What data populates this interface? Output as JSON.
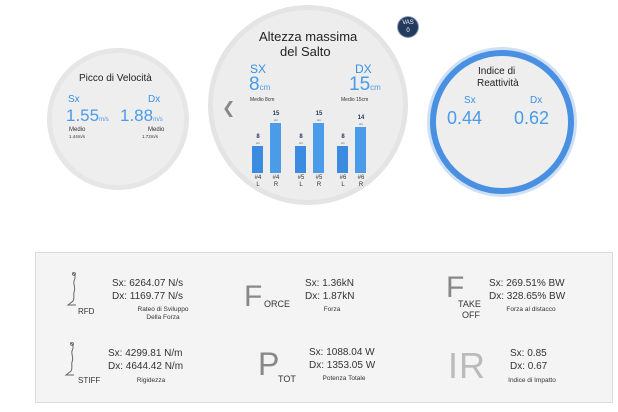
{
  "left_gauge": {
    "title": "Picco di Velocità",
    "sx_label": "Sx",
    "dx_label": "Dx",
    "sx_value": "1.55",
    "sx_unit": "m/s",
    "dx_value": "1.88",
    "dx_unit": "m/s",
    "sx_avg_label": "Medio",
    "sx_avg_value": "1.44m/s",
    "dx_avg_label": "Medio",
    "dx_avg_value": "1.72m/s"
  },
  "center_gauge": {
    "title_line1": "Altezza massima",
    "title_line2": "del Salto",
    "sx_label": "SX",
    "dx_label": "DX",
    "sx_value": "8",
    "sx_unit": "cm",
    "dx_value": "15",
    "dx_unit": "cm",
    "sx_avg": "Medio 8cm",
    "dx_avg": "Medio 15cm",
    "back_icon": "chevron-left-icon",
    "bar_unit": "cm"
  },
  "chart_data": {
    "type": "bar",
    "categories": [
      "#4 L",
      "#4 R",
      "#5 L",
      "#5 R",
      "#6 L",
      "#6 R"
    ],
    "values": [
      8,
      15,
      8,
      15,
      8,
      14
    ],
    "tick_labels": [
      [
        "#4",
        "L"
      ],
      [
        "#4",
        "R"
      ],
      [
        "#5",
        "L"
      ],
      [
        "#5",
        "R"
      ],
      [
        "#6",
        "L"
      ],
      [
        "#6",
        "R"
      ]
    ],
    "ylim": [
      0,
      16
    ]
  },
  "vas_badge": {
    "label": "VAS",
    "value": "0"
  },
  "right_gauge": {
    "title_line1": "Indice di",
    "title_line2": "Reattività",
    "sx_label": "Sx",
    "dx_label": "Dx",
    "sx_value": "0.44",
    "dx_value": "0.62"
  },
  "metrics": {
    "rfd": {
      "icon": "rfd-icon",
      "icon_text": "RFD",
      "sx": "Sx: 6264.07 N/s",
      "dx": "Dx: 1169.77 N/s",
      "label_line1": "Rateo di Sviluppo",
      "label_line2": "Della Forza"
    },
    "force": {
      "icon": "force-icon",
      "icon_big": "F",
      "icon_text": "ORCE",
      "sx": "Sx: 1.36kN",
      "dx": "Dx: 1.87kN",
      "label": "Forza"
    },
    "takeoff": {
      "icon": "takeoff-icon",
      "icon_big": "F",
      "icon_text1": "TAKE",
      "icon_text2": "OFF",
      "sx": "Sx: 269.51% BW",
      "dx": "Dx: 328.65% BW",
      "label": "Forza al distacco"
    },
    "stiff": {
      "icon": "stiff-icon",
      "icon_text": "STIFF",
      "sx": "Sx: 4299.81 N/m",
      "dx": "Dx: 4644.42 N/m",
      "label": "Rigidezza"
    },
    "ptot": {
      "icon": "power-icon",
      "icon_big": "P",
      "icon_text": "TOT",
      "sx": "Sx: 1088.04 W",
      "dx": "Dx: 1353.05 W",
      "label": "Potenza Totale"
    },
    "ir": {
      "icon": "impact-index-icon",
      "icon_big": "IR",
      "sx": "Sx: 0.85",
      "dx": "Dx: 0.67",
      "label": "Indice di Impatto"
    }
  }
}
